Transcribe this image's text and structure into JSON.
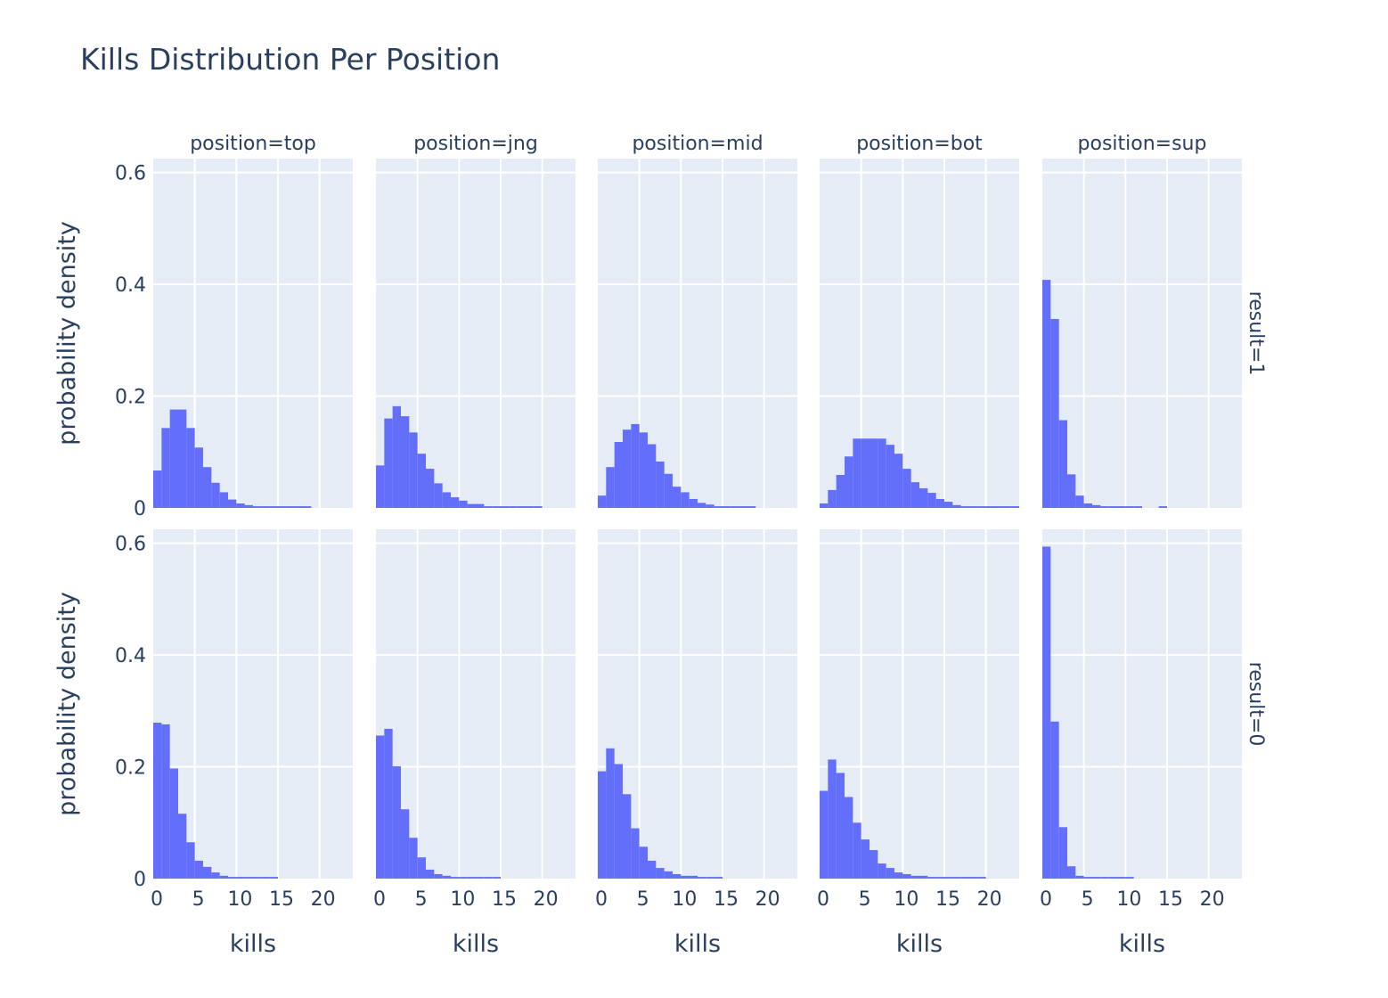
{
  "colors": {
    "bar": "#636efa",
    "plot_bg": "#e5ecf6",
    "grid": "#ffffff",
    "text": "#2a3f5f"
  },
  "chart_data": {
    "type": "bar",
    "title": "Kills Distribution Per Position",
    "xlabel": "kills",
    "ylabel": "probability density",
    "bin_width": 1,
    "xlim": [
      0,
      24
    ],
    "ylim": [
      0,
      0.625
    ],
    "x_ticks": [
      0,
      5,
      10,
      15,
      20
    ],
    "y_ticks": [
      0,
      0.2,
      0.4,
      0.6
    ],
    "y_tick_labels": [
      "0",
      "0.2",
      "0.4",
      "0.6"
    ],
    "grid": true,
    "columns": [
      "position=top",
      "position=jng",
      "position=mid",
      "position=bot",
      "position=sup"
    ],
    "rows": [
      "result=1",
      "result=0"
    ],
    "panels": [
      [
        {
          "bin_start": 0,
          "values": [
            0.067,
            0.143,
            0.176,
            0.176,
            0.143,
            0.108,
            0.073,
            0.045,
            0.028,
            0.015,
            0.008,
            0.005,
            0.003,
            0.003,
            0.003,
            0.003,
            0.003,
            0.003,
            0.003
          ]
        },
        {
          "bin_start": 0,
          "values": [
            0.076,
            0.16,
            0.182,
            0.164,
            0.135,
            0.097,
            0.07,
            0.044,
            0.028,
            0.019,
            0.013,
            0.007,
            0.007,
            0.003,
            0.003,
            0.003,
            0.003,
            0.003,
            0.003,
            0.003
          ]
        },
        {
          "bin_start": 0,
          "values": [
            0.022,
            0.073,
            0.118,
            0.14,
            0.15,
            0.135,
            0.114,
            0.083,
            0.061,
            0.038,
            0.028,
            0.016,
            0.009,
            0.006,
            0.003,
            0.003,
            0.003,
            0.003,
            0.003
          ]
        },
        {
          "bin_start": 0,
          "values": [
            0.008,
            0.032,
            0.059,
            0.092,
            0.124,
            0.124,
            0.124,
            0.124,
            0.113,
            0.097,
            0.07,
            0.046,
            0.035,
            0.027,
            0.016,
            0.011,
            0.005,
            0.003,
            0.003,
            0.003,
            0.003,
            0.003,
            0.003,
            0.003
          ]
        },
        {
          "bin_start": 0,
          "values": [
            0.408,
            0.338,
            0.157,
            0.06,
            0.022,
            0.008,
            0.005,
            0.003,
            0.003,
            0.003,
            0.003,
            0.003,
            0,
            0,
            0.003
          ]
        }
      ],
      [
        {
          "bin_start": 0,
          "values": [
            0.279,
            0.276,
            0.197,
            0.116,
            0.065,
            0.032,
            0.021,
            0.011,
            0.005,
            0.003,
            0.003,
            0.003,
            0.003,
            0.003,
            0.003
          ]
        },
        {
          "bin_start": 0,
          "values": [
            0.256,
            0.268,
            0.201,
            0.124,
            0.073,
            0.038,
            0.016,
            0.008,
            0.005,
            0.003,
            0.003,
            0.003,
            0.003,
            0.003,
            0.003
          ]
        },
        {
          "bin_start": 0,
          "values": [
            0.192,
            0.233,
            0.205,
            0.151,
            0.09,
            0.057,
            0.032,
            0.019,
            0.013,
            0.008,
            0.005,
            0.005,
            0.003,
            0.003,
            0.003
          ]
        },
        {
          "bin_start": 0,
          "values": [
            0.157,
            0.213,
            0.189,
            0.146,
            0.1,
            0.07,
            0.051,
            0.027,
            0.019,
            0.011,
            0.008,
            0.005,
            0.005,
            0.003,
            0.003,
            0.003,
            0.003,
            0.003,
            0.003,
            0.003
          ]
        },
        {
          "bin_start": 0,
          "values": [
            0.594,
            0.281,
            0.092,
            0.022,
            0.005,
            0.003,
            0.003,
            0.003,
            0.003,
            0.003,
            0.003
          ]
        }
      ]
    ]
  }
}
